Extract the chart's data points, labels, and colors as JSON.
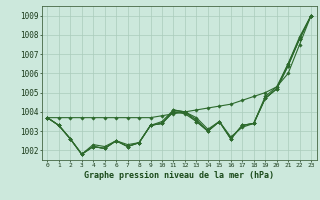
{
  "xlabel": "Graphe pression niveau de la mer (hPa)",
  "x": [
    0,
    1,
    2,
    3,
    4,
    5,
    6,
    7,
    8,
    9,
    10,
    11,
    12,
    13,
    14,
    15,
    16,
    17,
    18,
    19,
    20,
    21,
    22,
    23
  ],
  "series": [
    [
      1003.7,
      1003.3,
      1002.6,
      1001.8,
      1002.3,
      1002.2,
      1002.5,
      1002.3,
      1002.4,
      1003.3,
      1003.5,
      1004.1,
      1004.0,
      1003.7,
      1003.1,
      1003.5,
      1002.7,
      1003.2,
      1003.4,
      1004.8,
      1005.3,
      1006.5,
      1007.9,
      1009.0
    ],
    [
      1003.7,
      1003.3,
      1002.6,
      1001.8,
      1002.2,
      1002.1,
      1002.5,
      1002.2,
      1002.4,
      1003.3,
      1003.4,
      1004.1,
      1004.0,
      1003.6,
      1003.0,
      1003.5,
      1002.6,
      1003.3,
      1003.4,
      1004.7,
      1005.2,
      1006.5,
      1007.8,
      1009.0
    ],
    [
      1003.7,
      1003.3,
      1002.6,
      1001.8,
      1002.2,
      1002.1,
      1002.5,
      1002.2,
      1002.4,
      1003.3,
      1003.4,
      1004.0,
      1004.0,
      1003.5,
      1003.0,
      1003.5,
      1002.6,
      1003.3,
      1003.4,
      1004.7,
      1005.2,
      1006.4,
      1007.8,
      1009.0
    ],
    [
      1003.7,
      1003.3,
      1002.6,
      1001.8,
      1002.2,
      1002.1,
      1002.5,
      1002.2,
      1002.4,
      1003.3,
      1003.4,
      1004.0,
      1003.9,
      1003.5,
      1003.0,
      1003.5,
      1002.6,
      1003.3,
      1003.4,
      1004.7,
      1005.2,
      1006.4,
      1007.8,
      1009.0
    ],
    [
      1003.7,
      1003.7,
      1003.7,
      1003.7,
      1003.7,
      1003.7,
      1003.7,
      1003.7,
      1003.7,
      1003.7,
      1003.8,
      1003.9,
      1004.0,
      1004.1,
      1004.2,
      1004.3,
      1004.4,
      1004.6,
      1004.8,
      1005.0,
      1005.3,
      1006.0,
      1007.5,
      1009.0
    ]
  ],
  "line_color": "#2d6a2d",
  "marker_color": "#2d6a2d",
  "bg_color": "#cce8dc",
  "grid_color": "#aaccbc",
  "axis_label_color": "#1a4a1a",
  "tick_label_color": "#1a3a1a",
  "ylim": [
    1001.5,
    1009.5
  ],
  "yticks": [
    1002,
    1003,
    1004,
    1005,
    1006,
    1007,
    1008,
    1009
  ],
  "xtick_labels": [
    "0",
    "1",
    "2",
    "3",
    "4",
    "5",
    "6",
    "7",
    "8",
    "9",
    "10",
    "11",
    "12",
    "13",
    "14",
    "15",
    "16",
    "17",
    "18",
    "19",
    "20",
    "21",
    "22",
    "23"
  ]
}
